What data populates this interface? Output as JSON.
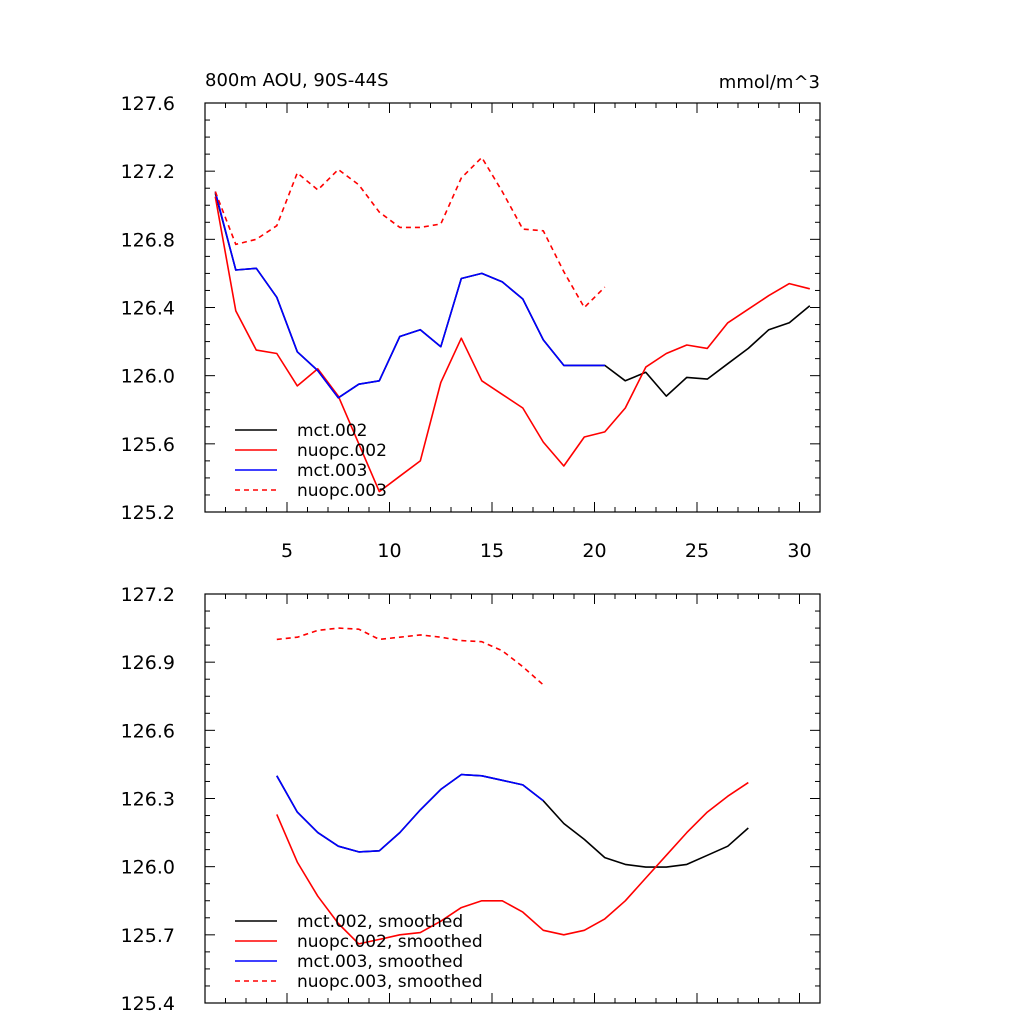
{
  "figure": {
    "title_left": "800m AOU, 90S-44S",
    "title_right": "mmol/m^3"
  },
  "chart_data": [
    {
      "type": "line",
      "title": "800m AOU, 90S-44S",
      "units": "mmol/m^3",
      "xlim": [
        1,
        31
      ],
      "ylim": [
        125.2,
        127.6
      ],
      "xticks": [
        5,
        10,
        15,
        20,
        25,
        30
      ],
      "xtick_labels": [
        "5",
        "10",
        "15",
        "20",
        "25",
        "30"
      ],
      "yticks": [
        125.2,
        125.6,
        126.0,
        126.4,
        126.8,
        127.2,
        127.6
      ],
      "ytick_labels": [
        "125.2",
        "125.6",
        "126.0",
        "126.4",
        "126.8",
        "127.2",
        "127.6"
      ],
      "legend_position": "bottom-left",
      "series": [
        {
          "name": "mct.002",
          "color": "#000000",
          "dash": "solid",
          "x": [
            1.5,
            2.5,
            3.5,
            4.5,
            5.5,
            6.5,
            7.5,
            8.5,
            9.5,
            10.5,
            11.5,
            12.5,
            13.5,
            14.5,
            15.5,
            16.5,
            17.5,
            18.5,
            19.5,
            20.5,
            21.5,
            22.5,
            23.5,
            24.5,
            25.5,
            26.5,
            27.5,
            28.5,
            29.5,
            30.5
          ],
          "y": [
            127.07,
            126.62,
            126.63,
            126.46,
            126.14,
            126.03,
            125.87,
            125.95,
            125.97,
            126.23,
            126.27,
            126.17,
            126.57,
            126.6,
            126.55,
            126.45,
            126.21,
            126.06,
            126.06,
            126.06,
            125.97,
            126.02,
            125.88,
            125.99,
            125.98,
            126.07,
            126.16,
            126.27,
            126.31,
            126.41
          ]
        },
        {
          "name": "nuopc.002",
          "color": "#ff0000",
          "dash": "solid",
          "x": [
            1.5,
            2.5,
            3.5,
            4.5,
            5.5,
            6.5,
            7.5,
            8.5,
            9.5,
            10.5,
            11.5,
            12.5,
            13.5,
            14.5,
            15.5,
            16.5,
            17.5,
            18.5,
            19.5,
            20.5,
            21.5,
            22.5,
            23.5,
            24.5,
            25.5,
            26.5,
            27.5,
            28.5,
            29.5,
            30.5
          ],
          "y": [
            127.05,
            126.38,
            126.15,
            126.13,
            125.94,
            126.04,
            125.88,
            125.6,
            125.32,
            125.41,
            125.5,
            125.96,
            126.22,
            125.97,
            125.89,
            125.81,
            125.61,
            125.47,
            125.64,
            125.67,
            125.81,
            126.05,
            126.13,
            126.18,
            126.16,
            126.31,
            126.39,
            126.47,
            126.54,
            126.51
          ]
        },
        {
          "name": "mct.003",
          "color": "#0000ff",
          "dash": "solid",
          "x": [
            1.5,
            2.5,
            3.5,
            4.5,
            5.5,
            6.5,
            7.5,
            8.5,
            9.5,
            10.5,
            11.5,
            12.5,
            13.5,
            14.5,
            15.5,
            16.5,
            17.5,
            18.5,
            19.5,
            20.5
          ],
          "y": [
            127.08,
            126.62,
            126.63,
            126.46,
            126.14,
            126.03,
            125.87,
            125.95,
            125.97,
            126.23,
            126.27,
            126.17,
            126.57,
            126.6,
            126.55,
            126.45,
            126.21,
            126.06,
            126.06,
            126.06
          ]
        },
        {
          "name": "nuopc.003",
          "color": "#ff0000",
          "dash": "dashed",
          "x": [
            1.5,
            2.5,
            3.5,
            4.5,
            5.5,
            6.5,
            7.5,
            8.5,
            9.5,
            10.5,
            11.5,
            12.5,
            13.5,
            14.5,
            15.5,
            16.5,
            17.5,
            18.5,
            19.5,
            20.5
          ],
          "y": [
            127.08,
            126.77,
            126.8,
            126.88,
            127.19,
            127.09,
            127.21,
            127.12,
            126.96,
            126.87,
            126.87,
            126.89,
            127.16,
            127.28,
            127.08,
            126.86,
            126.85,
            126.61,
            126.4,
            126.52
          ]
        }
      ]
    },
    {
      "type": "line",
      "xlim": [
        1,
        31
      ],
      "ylim": [
        125.4,
        127.2
      ],
      "xticks": [
        5,
        10,
        15,
        20,
        25,
        30
      ],
      "yticks": [
        125.4,
        125.7,
        126.0,
        126.3,
        126.6,
        126.9,
        127.2
      ],
      "ytick_labels": [
        "125.4",
        "125.7",
        "126.0",
        "126.3",
        "126.6",
        "126.9",
        "127.2"
      ],
      "legend_position": "bottom-left",
      "series": [
        {
          "name": "mct.002, smoothed",
          "color": "#000000",
          "dash": "solid",
          "x": [
            4.5,
            5.5,
            6.5,
            7.5,
            8.5,
            9.5,
            10.5,
            11.5,
            12.5,
            13.5,
            14.5,
            15.5,
            16.5,
            17.5,
            18.5,
            19.5,
            20.5,
            21.5,
            22.5,
            23.5,
            24.5,
            25.5,
            26.5,
            27.5
          ],
          "y": [
            126.4,
            126.24,
            126.15,
            126.09,
            126.065,
            126.07,
            126.15,
            126.25,
            126.34,
            126.405,
            126.4,
            126.38,
            126.36,
            126.29,
            126.19,
            126.12,
            126.04,
            126.01,
            125.998,
            125.998,
            126.01,
            126.05,
            126.09,
            126.17
          ]
        },
        {
          "name": "nuopc.002, smoothed",
          "color": "#ff0000",
          "dash": "solid",
          "x": [
            4.5,
            5.5,
            6.5,
            7.5,
            8.5,
            9.5,
            10.5,
            11.5,
            12.5,
            13.5,
            14.5,
            15.5,
            16.5,
            17.5,
            18.5,
            19.5,
            20.5,
            21.5,
            22.5,
            23.5,
            24.5,
            25.5,
            26.5,
            27.5
          ],
          "y": [
            126.23,
            126.02,
            125.87,
            125.75,
            125.66,
            125.68,
            125.7,
            125.71,
            125.76,
            125.82,
            125.85,
            125.85,
            125.8,
            125.72,
            125.7,
            125.72,
            125.77,
            125.85,
            125.95,
            126.05,
            126.15,
            126.24,
            126.31,
            126.37
          ]
        },
        {
          "name": "mct.003, smoothed",
          "color": "#0000ff",
          "dash": "solid",
          "x": [
            4.5,
            5.5,
            6.5,
            7.5,
            8.5,
            9.5,
            10.5,
            11.5,
            12.5,
            13.5,
            14.5,
            15.5,
            16.5,
            17.5
          ],
          "y": [
            126.4,
            126.24,
            126.15,
            126.09,
            126.065,
            126.07,
            126.15,
            126.25,
            126.34,
            126.405,
            126.4,
            126.38,
            126.36,
            126.29
          ]
        },
        {
          "name": "nuopc.003, smoothed",
          "color": "#ff0000",
          "dash": "dashed",
          "x": [
            4.5,
            5.5,
            6.5,
            7.5,
            8.5,
            9.5,
            10.5,
            11.5,
            12.5,
            13.5,
            14.5,
            15.5,
            16.5,
            17.5
          ],
          "y": [
            127.0,
            127.01,
            127.04,
            127.05,
            127.045,
            127.0,
            127.01,
            127.02,
            127.01,
            126.995,
            126.99,
            126.95,
            126.88,
            126.8
          ]
        }
      ]
    }
  ]
}
